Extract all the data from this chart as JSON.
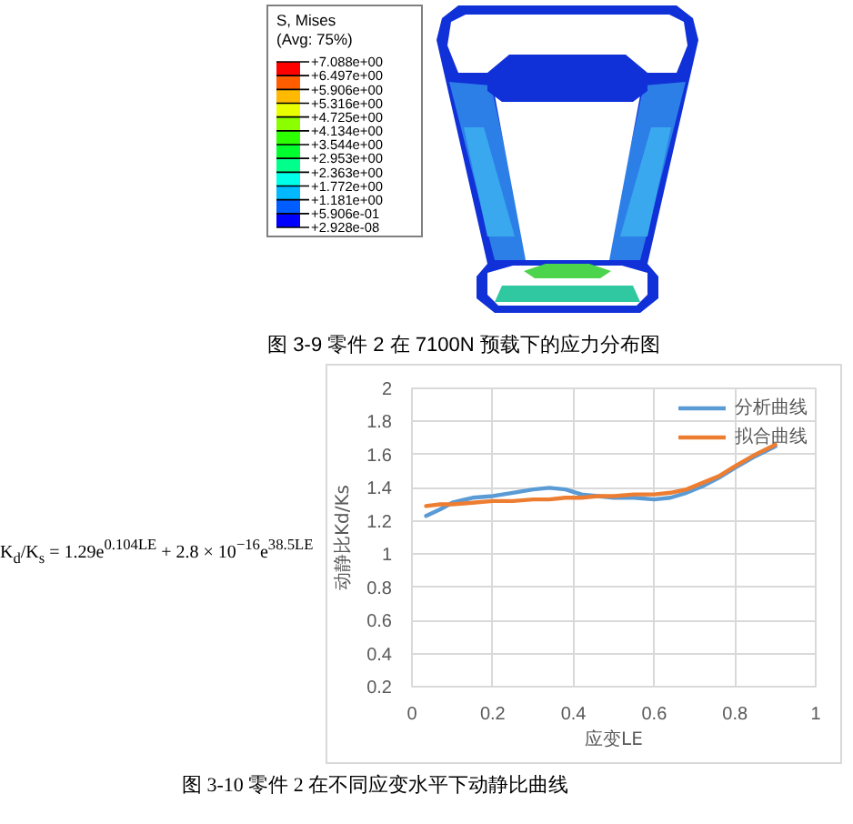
{
  "chart_data": [
    {
      "type": "other",
      "title": "图 3-9 零件 2 在 7100N 预载下的应力分布图",
      "legend_title": "S, Mises\n(Avg: 75%)",
      "annotations": [
        "+7.088e+00",
        "+6.497e+00",
        "+5.906e+00",
        "+5.316e+00",
        "+4.725e+00",
        "+4.134e+00",
        "+3.544e+00",
        "+2.953e+00",
        "+2.363e+00",
        "+1.772e+00",
        "+1.181e+00",
        "+5.906e-01",
        "+2.928e-08"
      ],
      "colors": [
        "#ff0000",
        "#ff5d00",
        "#ffb900",
        "#e8ff00",
        "#8bff00",
        "#2eff00",
        "#00ff2e",
        "#00ff8b",
        "#00ffe8",
        "#00b9ff",
        "#005dff",
        "#0000ff"
      ]
    },
    {
      "type": "line",
      "title": "图 3-10 零件 2 在不同应变水平下动静比曲线",
      "xlabel": "应变LE",
      "ylabel": "动静比Kd/Ks",
      "annotations": [
        "K$_{d}$/K$_{s}$ = 1.29e$^{0.104LE}$ + 2.8 × 10$^{−16}$e$^{38.5LE}$"
      ],
      "xlim": [
        0,
        1
      ],
      "ylim": [
        0.2,
        2
      ],
      "xticks": [
        0,
        0.2,
        0.4,
        0.6,
        0.8,
        1
      ],
      "yticks": [
        0.2,
        0.4,
        0.6,
        0.8,
        1,
        1.2,
        1.4,
        1.6,
        1.8,
        2
      ],
      "grid": true,
      "legend": "top right",
      "line_style": "solid",
      "x": [
        0.035,
        0.07,
        0.1,
        0.15,
        0.2,
        0.25,
        0.3,
        0.34,
        0.38,
        0.42,
        0.46,
        0.5,
        0.55,
        0.6,
        0.64,
        0.68,
        0.72,
        0.76,
        0.8,
        0.85,
        0.9
      ],
      "series": [
        {
          "name": "分析曲线",
          "color": "#5b9bd5",
          "values": [
            1.23,
            1.27,
            1.31,
            1.34,
            1.35,
            1.37,
            1.39,
            1.4,
            1.39,
            1.36,
            1.35,
            1.34,
            1.34,
            1.33,
            1.34,
            1.37,
            1.41,
            1.46,
            1.52,
            1.59,
            1.65
          ]
        },
        {
          "name": "拟合曲线",
          "color": "#ed7d31",
          "values": [
            1.29,
            1.3,
            1.3,
            1.31,
            1.32,
            1.32,
            1.33,
            1.33,
            1.34,
            1.34,
            1.35,
            1.35,
            1.36,
            1.36,
            1.37,
            1.39,
            1.43,
            1.47,
            1.53,
            1.6,
            1.66
          ]
        }
      ]
    }
  ]
}
